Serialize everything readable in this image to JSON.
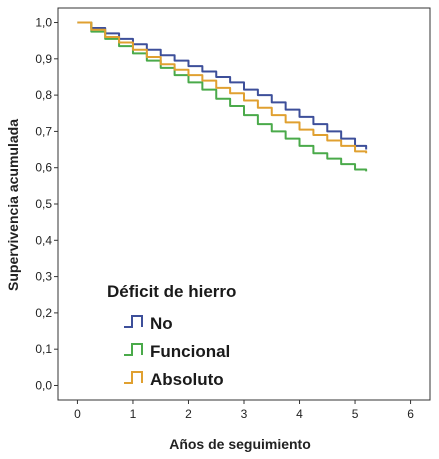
{
  "chart_data": {
    "type": "line",
    "xlabel": "Años de seguimiento",
    "ylabel": "Supervivencia acumulada",
    "xlim": [
      -0.35,
      6.35
    ],
    "ylim": [
      -0.04,
      1.04
    ],
    "x_ticks": [
      0,
      1,
      2,
      3,
      4,
      5,
      6
    ],
    "y_ticks": [
      {
        "value": 0.0,
        "label": "0,0"
      },
      {
        "value": 0.1,
        "label": "0,1"
      },
      {
        "value": 0.2,
        "label": "0,2"
      },
      {
        "value": 0.3,
        "label": "0,3"
      },
      {
        "value": 0.4,
        "label": "0,4"
      },
      {
        "value": 0.5,
        "label": "0,5"
      },
      {
        "value": 0.6,
        "label": "0,6"
      },
      {
        "value": 0.7,
        "label": "0,7"
      },
      {
        "value": 0.8,
        "label": "0,8"
      },
      {
        "value": 0.9,
        "label": "0,9"
      },
      {
        "value": 1.0,
        "label": "1,0"
      }
    ],
    "grid": false,
    "legend": {
      "title": "Déficit de hierro",
      "placement": "bottom-left",
      "entries": [
        "No",
        "Funcional",
        "Absoluto"
      ]
    },
    "series": [
      {
        "name": "No",
        "color": "#3d4f9a",
        "x": [
          0,
          0.25,
          0.5,
          0.75,
          1.0,
          1.25,
          1.5,
          1.75,
          2.0,
          2.25,
          2.5,
          2.75,
          3.0,
          3.25,
          3.5,
          3.75,
          4.0,
          4.25,
          4.5,
          4.75,
          5.0,
          5.2
        ],
        "y": [
          1.0,
          0.985,
          0.97,
          0.955,
          0.94,
          0.925,
          0.91,
          0.895,
          0.88,
          0.865,
          0.85,
          0.835,
          0.815,
          0.8,
          0.78,
          0.76,
          0.74,
          0.72,
          0.7,
          0.68,
          0.66,
          0.65
        ]
      },
      {
        "name": "Funcional",
        "color": "#4aaa4a",
        "x": [
          0,
          0.25,
          0.5,
          0.75,
          1.0,
          1.25,
          1.5,
          1.75,
          2.0,
          2.25,
          2.5,
          2.75,
          3.0,
          3.25,
          3.5,
          3.75,
          4.0,
          4.25,
          4.5,
          4.75,
          5.0,
          5.2
        ],
        "y": [
          1.0,
          0.975,
          0.955,
          0.935,
          0.915,
          0.895,
          0.875,
          0.855,
          0.835,
          0.815,
          0.79,
          0.77,
          0.745,
          0.72,
          0.7,
          0.68,
          0.66,
          0.64,
          0.625,
          0.61,
          0.595,
          0.59
        ]
      },
      {
        "name": "Absoluto",
        "color": "#e0a030",
        "x": [
          0,
          0.25,
          0.5,
          0.75,
          1.0,
          1.25,
          1.5,
          1.75,
          2.0,
          2.25,
          2.5,
          2.75,
          3.0,
          3.25,
          3.5,
          3.75,
          4.0,
          4.25,
          4.5,
          4.75,
          5.0,
          5.2
        ],
        "y": [
          1.0,
          0.98,
          0.96,
          0.945,
          0.925,
          0.905,
          0.885,
          0.87,
          0.855,
          0.84,
          0.82,
          0.805,
          0.785,
          0.765,
          0.745,
          0.725,
          0.705,
          0.69,
          0.675,
          0.66,
          0.645,
          0.64
        ]
      }
    ]
  }
}
